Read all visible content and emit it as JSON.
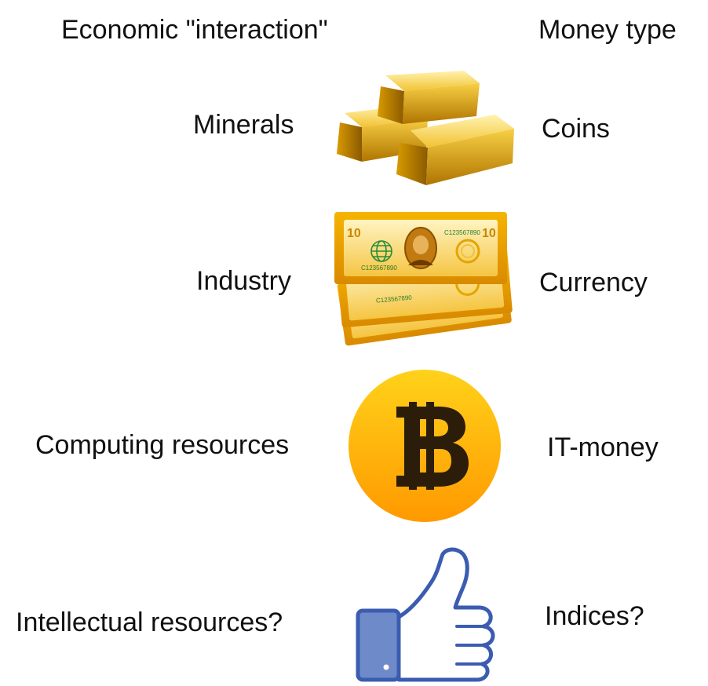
{
  "headers": {
    "left": "Economic \"interaction\"",
    "right": "Money type"
  },
  "rows": [
    {
      "left": "Minerals",
      "right": "Coins",
      "icon": "gold-bars-icon"
    },
    {
      "left": "Industry",
      "right": "Currency",
      "icon": "banknotes-icon"
    },
    {
      "left": "Computing resources",
      "right": "IT-money",
      "icon": "bitcoin-icon"
    },
    {
      "left": "Intellectual resources?",
      "right": "Indices?",
      "icon": "thumbs-up-icon"
    }
  ],
  "banknote": {
    "serial": "C123567890",
    "denomination": "10"
  },
  "colors": {
    "gold_light": "#fde27a",
    "gold": "#f2b705",
    "gold_dark": "#b87a00",
    "bitcoin_top": "#ffd21a",
    "bitcoin_bottom": "#ff9900",
    "thumb_blue": "#3b5cb0",
    "thumb_fill": "#6f8ac9"
  }
}
